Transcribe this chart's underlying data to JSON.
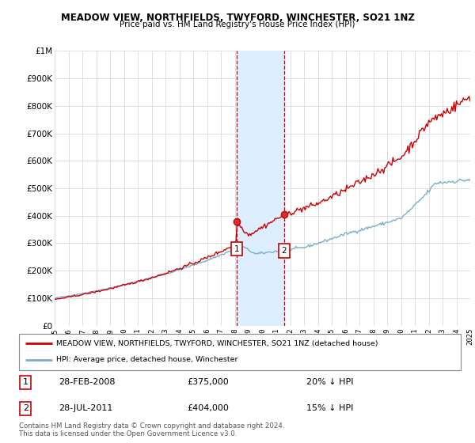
{
  "title": "MEADOW VIEW, NORTHFIELDS, TWYFORD, WINCHESTER, SO21 1NZ",
  "subtitle": "Price paid vs. HM Land Registry's House Price Index (HPI)",
  "x_start_year": 1995,
  "x_end_year": 2025,
  "y_min": 0,
  "y_max": 1000000,
  "y_ticks": [
    0,
    100000,
    200000,
    300000,
    400000,
    500000,
    600000,
    700000,
    800000,
    900000,
    1000000
  ],
  "y_tick_labels": [
    "£0",
    "£100K",
    "£200K",
    "£300K",
    "£400K",
    "£500K",
    "£600K",
    "£700K",
    "£800K",
    "£900K",
    "£1M"
  ],
  "sale1_date": 2008.16,
  "sale1_price": 375000,
  "sale1_label": "1",
  "sale1_date_str": "28-FEB-2008",
  "sale1_price_str": "£375,000",
  "sale1_hpi_str": "20% ↓ HPI",
  "sale2_date": 2011.57,
  "sale2_price": 404000,
  "sale2_label": "2",
  "sale2_date_str": "28-JUL-2011",
  "sale2_price_str": "£404,000",
  "sale2_hpi_str": "15% ↓ HPI",
  "red_color": "#cc0000",
  "blue_color": "#7aaecc",
  "shading_color": "#ddeeff",
  "legend1_text": "MEADOW VIEW, NORTHFIELDS, TWYFORD, WINCHESTER, SO21 1NZ (detached house)",
  "legend2_text": "HPI: Average price, detached house, Winchester",
  "copyright_text": "Contains HM Land Registry data © Crown copyright and database right 2024.\nThis data is licensed under the Open Government Licence v3.0.",
  "background_color": "#ffffff",
  "grid_color": "#dddddd"
}
